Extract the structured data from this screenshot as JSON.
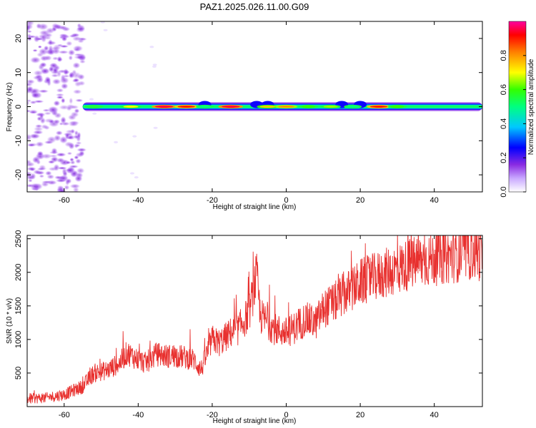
{
  "title": "PAZ1.2025.026.11.00.G09",
  "chart_data": [
    {
      "type": "heatmap",
      "xlabel": "Height of straight line (km)",
      "ylabel": "Frequency (Hz)",
      "xlim": [
        -70,
        53
      ],
      "ylim": [
        -25,
        25
      ],
      "xticks": [
        -60,
        -40,
        -20,
        0,
        20,
        40
      ],
      "xtick_labels": [
        "-60",
        "-40",
        "-20",
        "0",
        "20",
        "40"
      ],
      "yticks": [
        -20,
        -10,
        0,
        10,
        20
      ],
      "ytick_labels": [
        "-20",
        "-10",
        "0",
        "10",
        "20"
      ],
      "colorbar": {
        "label": "Normalized spectral amplitude",
        "range": [
          0,
          1
        ],
        "ticks": [
          0.0,
          0.2,
          0.4,
          0.6,
          0.8
        ],
        "tick_labels": [
          "0.0",
          "0.2",
          "0.4",
          "0.6",
          "0.8"
        ],
        "colormap": "rainbow (white-purple-blue-cyan-green-yellow-orange-red-magenta)"
      },
      "features": {
        "noise_region_x": [
          -70,
          -55
        ],
        "signal_track_x": [
          -55,
          53
        ],
        "signal_frequency_hz": 0,
        "track_peaks": [
          {
            "x": -52,
            "amp": 0.55
          },
          {
            "x": -42,
            "amp": 0.7
          },
          {
            "x": -33,
            "amp": 0.95
          },
          {
            "x": -27,
            "amp": 0.9
          },
          {
            "x": -22,
            "amp": 0.5
          },
          {
            "x": -15,
            "amp": 0.95
          },
          {
            "x": -5,
            "amp": 0.75
          },
          {
            "x": 0,
            "amp": 0.8
          },
          {
            "x": 6,
            "amp": 0.6
          },
          {
            "x": 12,
            "amp": 0.65
          },
          {
            "x": 18,
            "amp": 0.5
          },
          {
            "x": 25,
            "amp": 0.9
          },
          {
            "x": 30,
            "amp": 0.6
          }
        ]
      }
    },
    {
      "type": "line",
      "xlabel": "Height of straight line (km)",
      "ylabel": "SNR (10 * v/v)",
      "xlim": [
        -70,
        53
      ],
      "ylim": [
        0,
        2550
      ],
      "xticks": [
        -60,
        -40,
        -20,
        0,
        20,
        40
      ],
      "xtick_labels": [
        "-60",
        "-40",
        "-20",
        "0",
        "20",
        "40"
      ],
      "yticks": [
        500,
        1000,
        1500,
        2000,
        2500
      ],
      "ytick_labels": [
        "500",
        "1000",
        "1500",
        "2000",
        "2500"
      ],
      "color": "#e8302e",
      "series": [
        {
          "x": [
            -70,
            -65,
            -60,
            -55,
            -52,
            -50,
            -48,
            -45,
            -43,
            -40,
            -38,
            -35,
            -32,
            -30,
            -27,
            -25,
            -23,
            -20,
            -18,
            -15,
            -13,
            -10,
            -8,
            -7,
            -5,
            -3,
            0,
            3,
            5,
            8,
            10,
            13,
            15,
            18,
            20,
            25,
            30,
            35,
            40,
            45,
            50,
            53
          ],
          "y": [
            120,
            130,
            180,
            300,
            500,
            520,
            550,
            650,
            800,
            700,
            650,
            780,
            750,
            760,
            730,
            700,
            550,
            1000,
            950,
            1100,
            1150,
            1400,
            1950,
            1350,
            1250,
            1150,
            1100,
            1200,
            1300,
            1250,
            1450,
            1550,
            1650,
            1750,
            1850,
            1950,
            2050,
            2150,
            2200,
            2250,
            2300,
            2280
          ]
        }
      ]
    }
  ]
}
